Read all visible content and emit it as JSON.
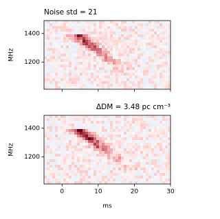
{
  "chart_data": [
    {
      "type": "image",
      "title": "Noise std = 21",
      "ylabel": "MHz",
      "xlim": [
        -5,
        30
      ],
      "xticks": [
        0,
        10,
        20,
        30
      ],
      "show_xticklabels": false,
      "ylim": [
        1010,
        1490
      ],
      "yticks": [
        1200,
        1400
      ]
    },
    {
      "type": "image",
      "title": "ΔDM = 3.48 pc cm⁻³",
      "ylabel": "MHz",
      "xlabel": "ms",
      "xlim": [
        -5,
        30
      ],
      "xticks": [
        0,
        10,
        20,
        30
      ],
      "show_xticklabels": true,
      "ylim": [
        1010,
        1490
      ],
      "yticks": [
        1200,
        1400
      ]
    }
  ]
}
